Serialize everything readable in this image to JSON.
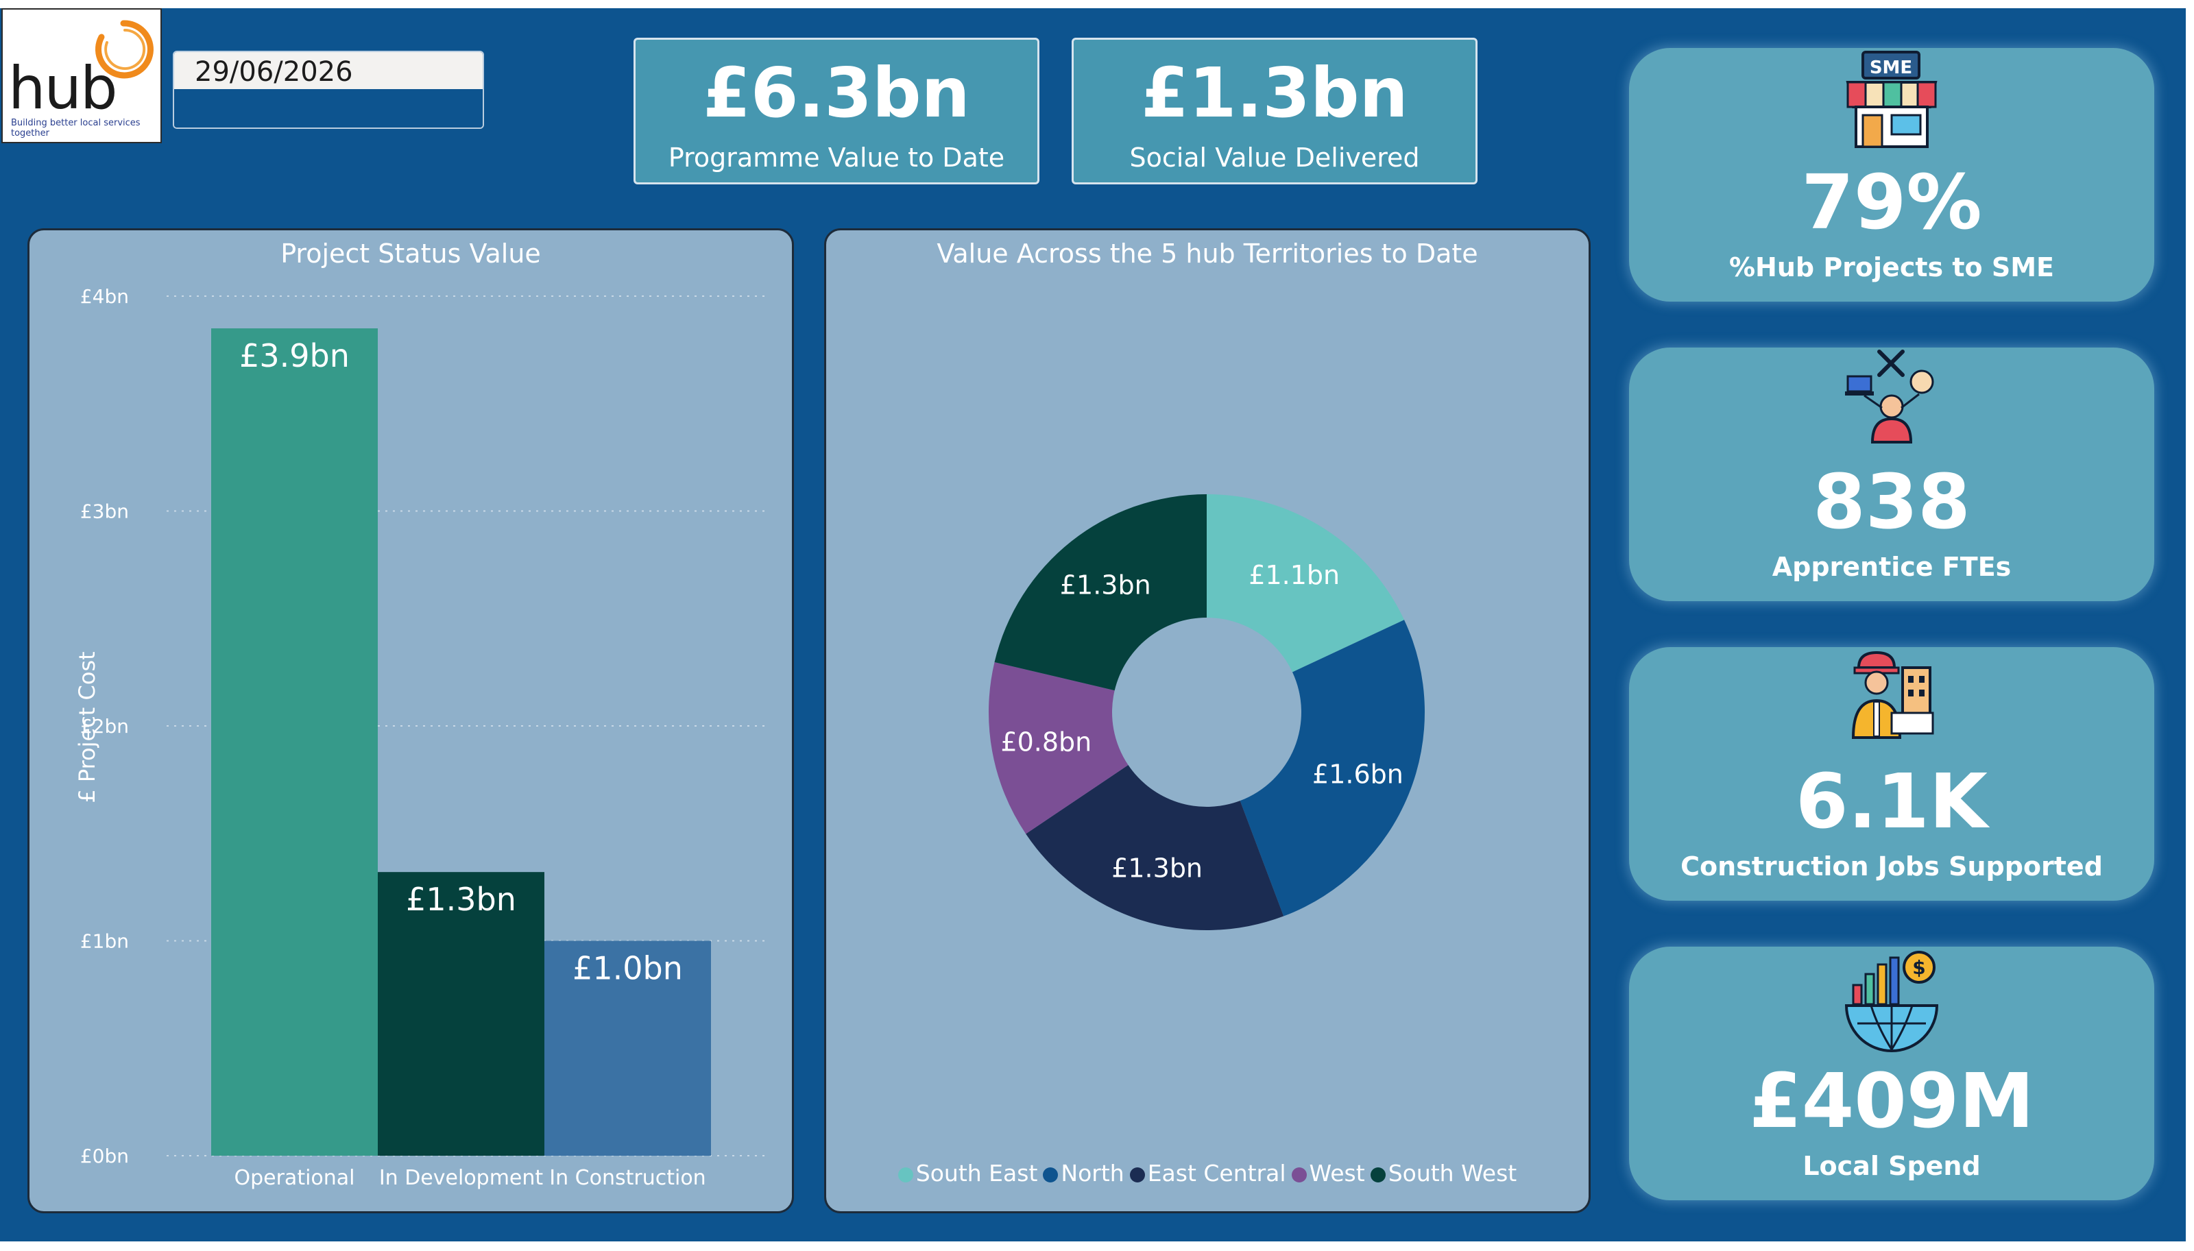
{
  "logo": {
    "word": "hub",
    "tagline": "Building better local services together"
  },
  "date_slicer": {
    "value": "29/06/2026"
  },
  "kpis": [
    {
      "value": "£6.3bn",
      "label": "Programme Value to Date"
    },
    {
      "value": "£1.3bn",
      "label": "Social Value Delivered"
    }
  ],
  "cards": [
    {
      "icon": "sme-shop-icon",
      "value": "79%",
      "label": "%Hub Projects to SME"
    },
    {
      "icon": "apprentice-icon",
      "value": "838",
      "label": "Apprentice FTEs"
    },
    {
      "icon": "construction-worker-icon",
      "value": "6.1K",
      "label": "Construction Jobs Supported"
    },
    {
      "icon": "global-spend-icon",
      "value": "£409M",
      "label": "Local Spend"
    }
  ],
  "chart_data": [
    {
      "type": "bar",
      "title": "Project Status Value",
      "ylabel": "£ Project Cost",
      "xlabel": "",
      "categories": [
        "Operational",
        "In Development",
        "In Construction"
      ],
      "values": [
        3.85,
        1.32,
        1.0
      ],
      "data_labels": [
        "£3.9bn",
        "£1.3bn",
        "£1.0bn"
      ],
      "colors": [
        "#369a8a",
        "#05413d",
        "#3b72a4"
      ],
      "ylim": [
        0,
        4
      ],
      "y_ticks": [
        0,
        1,
        2,
        3,
        4
      ],
      "y_tick_labels": [
        "£0bn",
        "£1bn",
        "£2bn",
        "£3bn",
        "£4bn"
      ],
      "grid": true
    },
    {
      "type": "pie",
      "title": "Value Across the 5 hub Territories to Date",
      "donut": true,
      "categories": [
        "South East",
        "North",
        "East Central",
        "West",
        "South West"
      ],
      "values": [
        1.1,
        1.6,
        1.3,
        0.8,
        1.3
      ],
      "data_labels": [
        "£1.1bn",
        "£1.6bn",
        "£1.3bn",
        "£0.8bn",
        "£1.3bn"
      ],
      "colors": [
        "#67c4c1",
        "#0e548f",
        "#1b2c52",
        "#7b4f95",
        "#05413d"
      ],
      "legend": "bottom"
    }
  ]
}
